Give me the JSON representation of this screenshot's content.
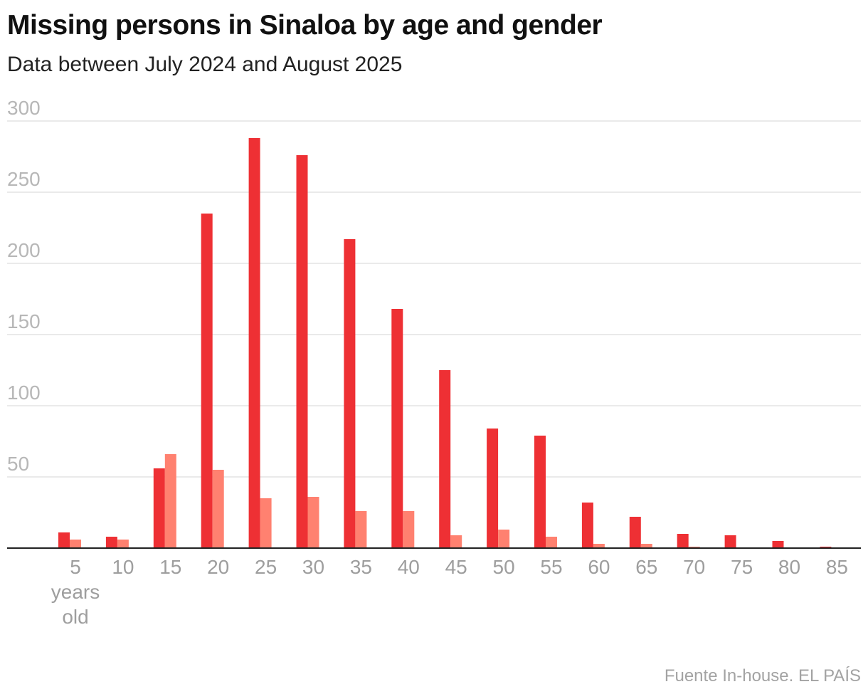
{
  "chart_data": {
    "type": "bar",
    "title": "Missing persons in Sinaloa by age and gender",
    "subtitle": "Data between July 2024 and August 2025",
    "categories": [
      "5",
      "10",
      "15",
      "20",
      "25",
      "30",
      "35",
      "40",
      "45",
      "50",
      "55",
      "60",
      "65",
      "70",
      "75",
      "80",
      "85"
    ],
    "first_category_suffix": [
      "years",
      "old"
    ],
    "series": [
      {
        "values": [
          11,
          8,
          56,
          235,
          288,
          276,
          217,
          168,
          125,
          84,
          79,
          32,
          22,
          10,
          9,
          5,
          1
        ],
        "color": "#ee3034"
      },
      {
        "values": [
          6,
          6,
          66,
          55,
          35,
          36,
          26,
          26,
          9,
          13,
          8,
          3,
          3,
          1,
          0,
          0,
          0
        ],
        "color": "#ff8170"
      }
    ],
    "y_ticks": [
      50,
      100,
      150,
      200,
      250,
      300
    ],
    "ylim": [
      0,
      300
    ],
    "grid": true,
    "legend": "none"
  },
  "footer": "Fuente In-house. EL PAÍS",
  "colors": {
    "grid": "#e3e3e3",
    "axis": "#222222",
    "tick_text": "#b7b7b7",
    "x_tick_text": "#9e9e9e"
  }
}
